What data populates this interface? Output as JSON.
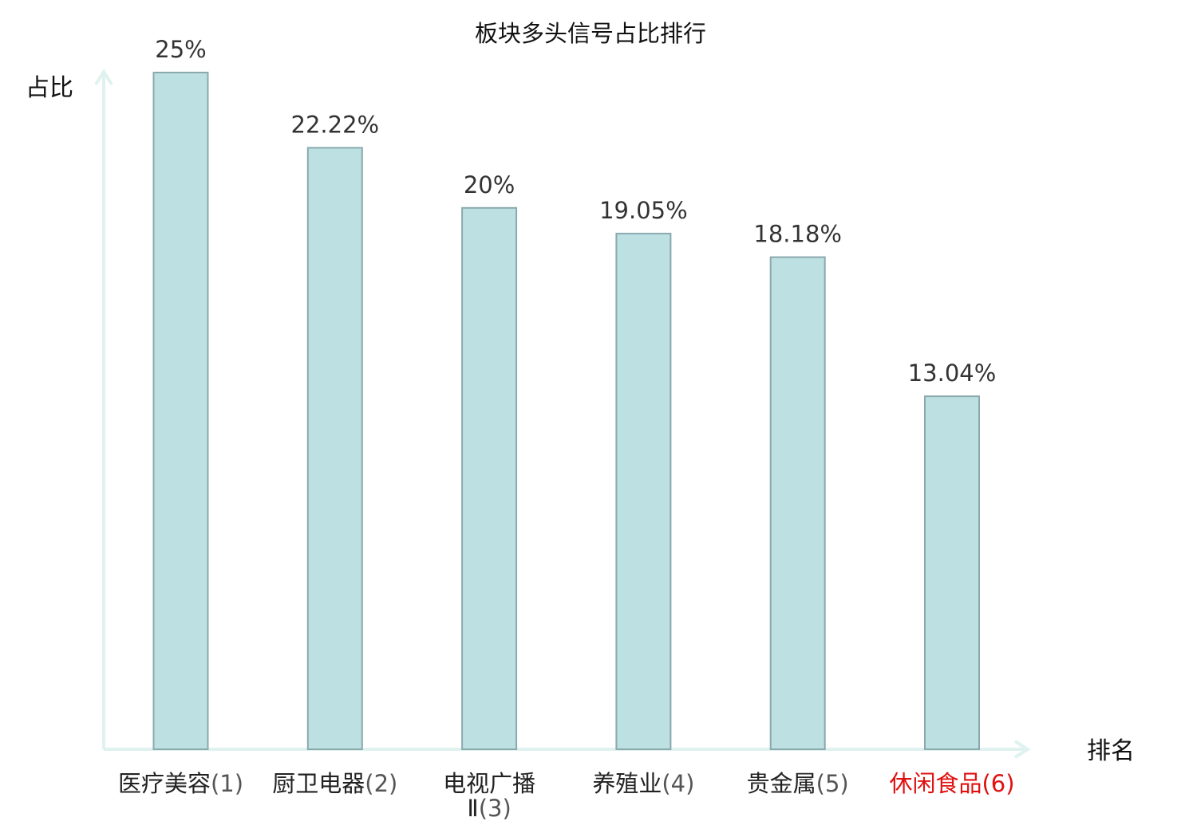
{
  "chart_data": {
    "type": "bar",
    "title": "板块多头信号占比排行",
    "ylabel": "占比",
    "xlabel": "排名",
    "categories": [
      "医疗美容(1)",
      "厨卫电器(2)",
      "电视广播Ⅱ(3)",
      "养殖业(4)",
      "贵金属(5)",
      "休闲食品(6)"
    ],
    "category_lines": [
      [
        {
          "text": "医疗美容",
          "tail": "(1)"
        }
      ],
      [
        {
          "text": "厨卫电器",
          "tail": "(2)"
        }
      ],
      [
        {
          "text": "电视广播",
          "tail": ""
        },
        {
          "text": "Ⅱ",
          "tail": "(3)"
        }
      ],
      [
        {
          "text": "养殖业",
          "tail": "(4)"
        }
      ],
      [
        {
          "text": "贵金属",
          "tail": "(5)"
        }
      ],
      [
        {
          "text": "休闲食品",
          "tail": "(6)"
        }
      ]
    ],
    "values": [
      25,
      22.22,
      20,
      19.05,
      18.18,
      13.04
    ],
    "value_labels": [
      "25%",
      "22.22%",
      "20%",
      "19.05%",
      "18.18%",
      "13.04%"
    ],
    "ylim": [
      0,
      25
    ],
    "grid": false,
    "highlight_index": 5,
    "colors": {
      "bar_fill": "#bde0e3",
      "bar_stroke": "#8aa9ad",
      "axis": "#dff2ef",
      "label": "#222222",
      "label_tail": "#555555",
      "highlight": "#e01010"
    }
  }
}
